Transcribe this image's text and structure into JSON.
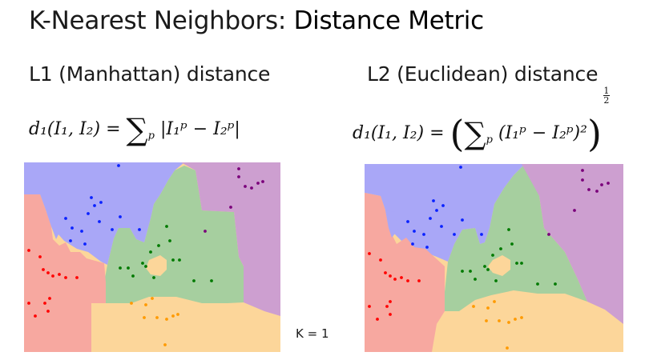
{
  "title": {
    "prefix": "K-Nearest Neighbors: ",
    "emphasis": "Distance Metric"
  },
  "panels": [
    {
      "id": "l1",
      "subtitle": "L1 (Manhattan) distance",
      "formula": {
        "lhs": "d₁(I₁, I₂) =",
        "sum": "∑",
        "index": "p",
        "body": "|I₁ᵖ − I₂ᵖ|"
      }
    },
    {
      "id": "l2",
      "subtitle": "L2 (Euclidean) distance",
      "formula": {
        "lhs": "d₁(I₁, I₂) =",
        "sum": "∑",
        "index": "p",
        "body": "(I₁ᵖ − I₂ᵖ)²",
        "exp_num": "1",
        "exp_den": "2"
      }
    }
  ],
  "k_label": "K = 1",
  "colors": {
    "blue_region": "#a9a7f7",
    "purple_region": "#cd9fd0",
    "red_region": "#f7a8a0",
    "green_region": "#a6cf9f",
    "orange_region": "#fcd69a",
    "blue_point": "#0a22ff",
    "purple_point": "#7a007a",
    "red_point": "#ff0000",
    "green_point": "#007a00",
    "orange_point": "#ff9a00"
  }
}
